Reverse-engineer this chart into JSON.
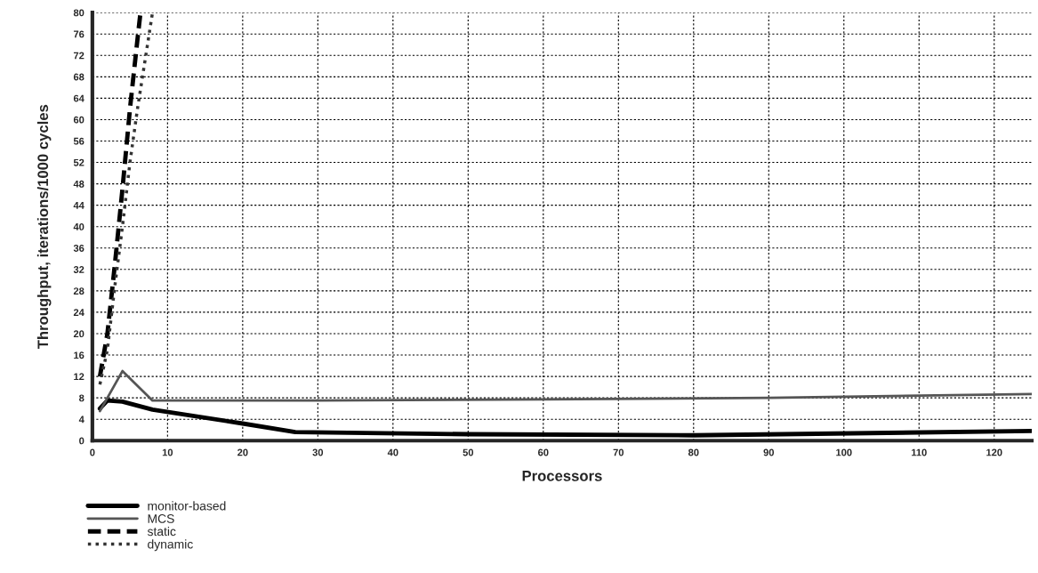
{
  "chart_data": {
    "type": "line",
    "xlabel": "Processors",
    "ylabel": "Throughput, iterations/1000 cycles",
    "xlim": [
      0,
      125
    ],
    "xticks": [
      0,
      10,
      20,
      30,
      40,
      50,
      60,
      70,
      80,
      90,
      100,
      110,
      120
    ],
    "ylim": [
      0,
      80
    ],
    "yticks": [
      0,
      4,
      8,
      12,
      16,
      20,
      24,
      28,
      32,
      36,
      40,
      44,
      48,
      52,
      56,
      60,
      64,
      68,
      72,
      76,
      80
    ],
    "grid": true,
    "legend": "bottom left",
    "marker": "none",
    "series": [
      {
        "name": "monitor-based",
        "color": "#000000",
        "line_style": "solid",
        "x": [
          1,
          2,
          4,
          8,
          20,
          27,
          50,
          80,
          125
        ],
        "values": [
          6,
          7.5,
          7.3,
          5.8,
          3.2,
          1.6,
          1.2,
          1,
          1.8
        ]
      },
      {
        "name": "MCS",
        "color": "#555555",
        "line_style": "solid",
        "x": [
          1,
          4,
          8,
          30,
          60,
          90,
          125
        ],
        "values": [
          5.5,
          13,
          7.5,
          7.5,
          7.7,
          8,
          8.7
        ]
      },
      {
        "name": "static",
        "color": "#000000",
        "line_style": "dashed",
        "x": [
          1,
          2,
          3,
          4,
          5,
          6,
          6.4
        ],
        "values": [
          12,
          20,
          33,
          47,
          62,
          75,
          80
        ]
      },
      {
        "name": "dynamic",
        "color": "#333333",
        "line_style": "dotted",
        "x": [
          1,
          2,
          3,
          4,
          5,
          6,
          7,
          8
        ],
        "values": [
          10.5,
          17,
          29,
          40,
          52,
          62,
          71,
          80
        ]
      }
    ]
  }
}
